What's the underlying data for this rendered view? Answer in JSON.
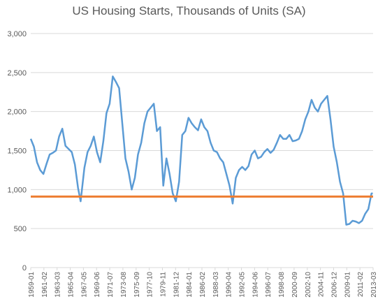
{
  "chart_data": {
    "type": "line",
    "title": "US Housing Starts, Thousands of Units (SA)",
    "xlabel": "",
    "ylabel": "",
    "ylim": [
      0,
      3000
    ],
    "yticks": [
      "0",
      "500",
      "1,000",
      "1,500",
      "2,000",
      "2,500",
      "3,000"
    ],
    "ytick_values": [
      0,
      500,
      1000,
      1500,
      2000,
      2500,
      3000
    ],
    "xticks": [
      "1959-01",
      "1961-02",
      "1963-03",
      "1965-04",
      "1967-05",
      "1969-06",
      "1971-07",
      "1973-08",
      "1975-09",
      "1977-10",
      "1979-11",
      "1981-12",
      "1984-01",
      "1986-02",
      "1988-03",
      "1990-04",
      "1992-05",
      "1994-06",
      "1996-07",
      "1998-08",
      "2000-09",
      "2002-10",
      "2004-11",
      "2006-12",
      "2009-01",
      "2011-02",
      "2013-03"
    ],
    "grid": "horizontal",
    "legend": "none",
    "colors": {
      "housing": "#5B9BD5",
      "reference": "#ED7D31",
      "grid": "#D9D9D9",
      "text": "#595959"
    },
    "series": [
      {
        "x": [
          1959.0,
          1959.5,
          1960.0,
          1960.5,
          1961.0,
          1961.5,
          1962.0,
          1962.5,
          1963.0,
          1963.5,
          1964.0,
          1964.5,
          1965.0,
          1965.5,
          1966.0,
          1966.5,
          1966.9,
          1967.5,
          1968.0,
          1968.5,
          1969.0,
          1969.5,
          1970.0,
          1970.5,
          1971.0,
          1971.5,
          1972.0,
          1972.5,
          1973.0,
          1973.5,
          1974.0,
          1974.5,
          1975.0,
          1975.5,
          1976.0,
          1976.5,
          1977.0,
          1977.5,
          1978.0,
          1978.5,
          1979.0,
          1979.5,
          1980.0,
          1980.5,
          1981.0,
          1981.5,
          1982.0,
          1982.5,
          1983.0,
          1983.5,
          1984.0,
          1984.5,
          1985.0,
          1985.5,
          1986.0,
          1986.5,
          1987.0,
          1987.5,
          1988.0,
          1988.5,
          1989.0,
          1989.5,
          1990.0,
          1990.5,
          1991.0,
          1991.5,
          1992.0,
          1992.5,
          1993.0,
          1993.5,
          1994.0,
          1994.5,
          1995.0,
          1995.5,
          1996.0,
          1996.5,
          1997.0,
          1997.5,
          1998.0,
          1998.5,
          1999.0,
          1999.5,
          2000.0,
          2000.5,
          2001.0,
          2001.5,
          2002.0,
          2002.5,
          2003.0,
          2003.5,
          2004.0,
          2004.5,
          2005.0,
          2005.5,
          2006.0,
          2006.5,
          2007.0,
          2007.5,
          2008.0,
          2008.5,
          2009.0,
          2009.5,
          2010.0,
          2010.5,
          2011.0,
          2011.5,
          2012.0,
          2012.5,
          2013.0,
          2013.2
        ],
        "values": [
          1650,
          1550,
          1350,
          1250,
          1200,
          1330,
          1450,
          1470,
          1500,
          1680,
          1780,
          1560,
          1520,
          1480,
          1320,
          1020,
          850,
          1280,
          1480,
          1560,
          1680,
          1480,
          1350,
          1620,
          1980,
          2100,
          2450,
          2380,
          2300,
          1850,
          1400,
          1230,
          1000,
          1150,
          1450,
          1600,
          1850,
          2000,
          2050,
          2100,
          1750,
          1800,
          1050,
          1400,
          1200,
          950,
          850,
          1100,
          1700,
          1750,
          1920,
          1850,
          1800,
          1760,
          1900,
          1800,
          1750,
          1600,
          1500,
          1480,
          1400,
          1350,
          1200,
          1050,
          820,
          1150,
          1250,
          1290,
          1250,
          1300,
          1450,
          1500,
          1400,
          1420,
          1480,
          1520,
          1470,
          1510,
          1600,
          1700,
          1650,
          1650,
          1700,
          1620,
          1630,
          1650,
          1750,
          1900,
          2000,
          2150,
          2050,
          2000,
          2100,
          2150,
          2200,
          1900,
          1550,
          1350,
          1100,
          950,
          550,
          560,
          600,
          590,
          570,
          600,
          690,
          750,
          950,
          950
        ]
      },
      {
        "name": "",
        "values": [
          910
        ]
      }
    ]
  }
}
